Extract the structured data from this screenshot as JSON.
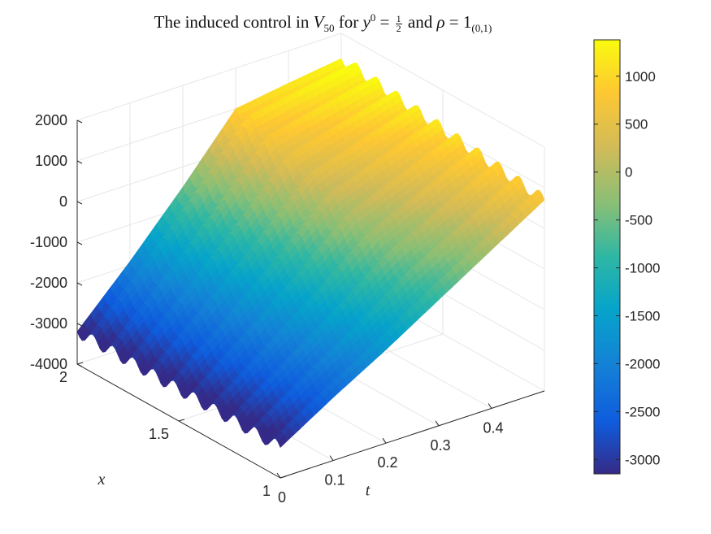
{
  "title": {
    "prefix": "The induced control in",
    "v": "V",
    "v_sub": "50",
    "for": "for",
    "y": "y",
    "y_sup": "0",
    "eq": "=",
    "frac_num": "1",
    "frac_den": "2",
    "and": "and",
    "rho": "ρ",
    "eq2": "= 1",
    "rho_sub": "(0,1)"
  },
  "chart_data": {
    "type": "surface",
    "colormap": "parula",
    "grid": true,
    "axes": {
      "x": {
        "label": "x",
        "range": [
          1,
          2
        ],
        "ticks": [
          "1",
          "1.5",
          "2"
        ]
      },
      "t": {
        "label": "t",
        "range": [
          0,
          0.5
        ],
        "ticks": [
          "0",
          "0.1",
          "0.2",
          "0.3",
          "0.4"
        ]
      },
      "z": {
        "label": "",
        "range": [
          -4000,
          2000
        ],
        "ticks": [
          "-4000",
          "-3000",
          "-2000",
          "-1000",
          "0",
          "1000",
          "2000"
        ]
      }
    },
    "surface_samples": {
      "t": [
        0,
        0.1,
        0.2,
        0.3,
        0.4,
        0.5
      ],
      "x": [
        1.0,
        1.25,
        1.5,
        1.75,
        2.0
      ],
      "values_x1": [
        -3250,
        -2450,
        -1700,
        -900,
        -100,
        700
      ],
      "values_x2": [
        -3200,
        -1900,
        -500,
        1000,
        1200,
        1380
      ],
      "oscillation_count_along_x": 10,
      "oscillation_amplitude": 150
    },
    "colorbar": {
      "range": [
        -3150,
        1380
      ],
      "ticks": [
        "1000",
        "500",
        "0",
        "-500",
        "-1000",
        "-1500",
        "-2000",
        "-2500",
        "-3000"
      ],
      "tick_values": [
        1000,
        500,
        0,
        -500,
        -1000,
        -1500,
        -2000,
        -2500,
        -3000
      ]
    }
  }
}
